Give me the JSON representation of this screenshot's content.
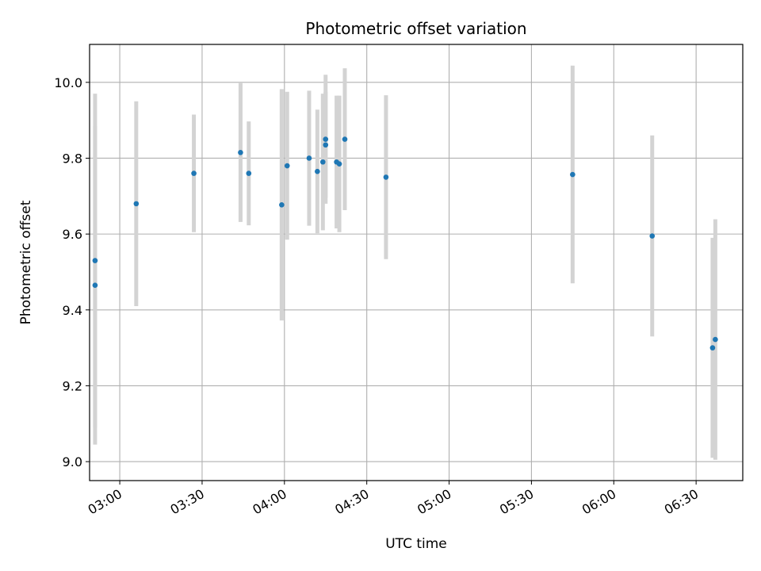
{
  "chart_data": {
    "type": "scatter",
    "title": "Photometric offset variation",
    "xlabel": "UTC time",
    "ylabel": "Photometric offset",
    "x_ticks": [
      "03:00",
      "03:30",
      "04:00",
      "04:30",
      "05:00",
      "05:30",
      "06:00",
      "06:30"
    ],
    "y_ticks": [
      "9.0",
      "9.2",
      "9.4",
      "9.6",
      "9.8",
      "10.0"
    ],
    "xlim": [
      "02:49",
      "06:47"
    ],
    "ylim": [
      8.95,
      10.1
    ],
    "grid": true,
    "colors": {
      "point": "#1f77b4",
      "errorbar": "#d3d3d3",
      "grid": "#b0b0b0"
    },
    "points": [
      {
        "time": "02:51",
        "y": 9.53,
        "err": 0.44
      },
      {
        "time": "02:51",
        "y": 9.465,
        "err": 0.42
      },
      {
        "time": "03:06",
        "y": 9.68,
        "err": 0.27
      },
      {
        "time": "03:27",
        "y": 9.76,
        "err": 0.155
      },
      {
        "time": "03:44",
        "y": 9.815,
        "err": 0.183
      },
      {
        "time": "03:47",
        "y": 9.76,
        "err": 0.137
      },
      {
        "time": "03:59",
        "y": 9.677,
        "err": 0.305
      },
      {
        "time": "04:01",
        "y": 9.78,
        "err": 0.195
      },
      {
        "time": "04:09",
        "y": 9.8,
        "err": 0.178
      },
      {
        "time": "04:12",
        "y": 9.765,
        "err": 0.163
      },
      {
        "time": "04:14",
        "y": 9.79,
        "err": 0.18
      },
      {
        "time": "04:15",
        "y": 9.835,
        "err": 0.14
      },
      {
        "time": "04:15",
        "y": 9.85,
        "err": 0.17
      },
      {
        "time": "04:19",
        "y": 9.79,
        "err": 0.175
      },
      {
        "time": "04:20",
        "y": 9.785,
        "err": 0.18
      },
      {
        "time": "04:22",
        "y": 9.85,
        "err": 0.187
      },
      {
        "time": "04:37",
        "y": 9.75,
        "err": 0.216
      },
      {
        "time": "05:45",
        "y": 9.757,
        "err": 0.287
      },
      {
        "time": "06:14",
        "y": 9.595,
        "err": 0.265
      },
      {
        "time": "06:36",
        "y": 9.3,
        "err": 0.29
      },
      {
        "time": "06:37",
        "y": 9.322,
        "err": 0.317
      }
    ]
  }
}
